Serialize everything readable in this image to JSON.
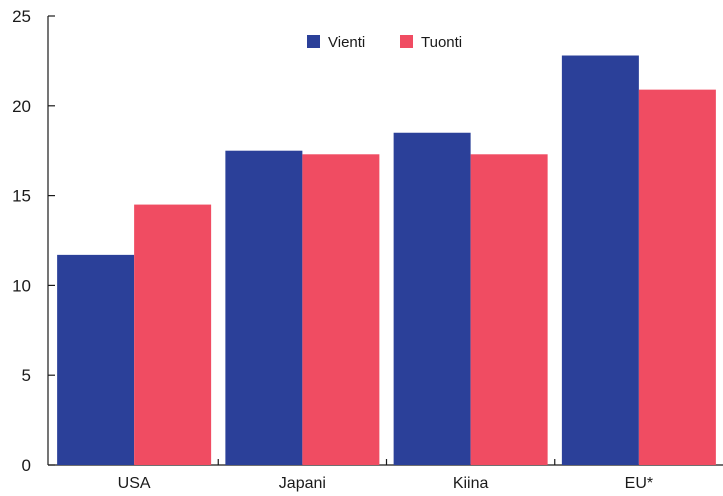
{
  "chart_data": {
    "type": "bar",
    "categories": [
      "USA",
      "Japani",
      "Kiina",
      "EU*"
    ],
    "series": [
      {
        "name": "Vienti",
        "color": "#2b4099",
        "values": [
          11.7,
          17.5,
          18.5,
          22.8
        ]
      },
      {
        "name": "Tuonti",
        "color": "#f04c62",
        "values": [
          14.5,
          17.3,
          17.3,
          20.9
        ]
      }
    ],
    "ylim": [
      0,
      25
    ],
    "yticks": [
      "0",
      "5",
      "10",
      "15",
      "20",
      "25"
    ],
    "legend_position": "top-center",
    "grid": false
  }
}
